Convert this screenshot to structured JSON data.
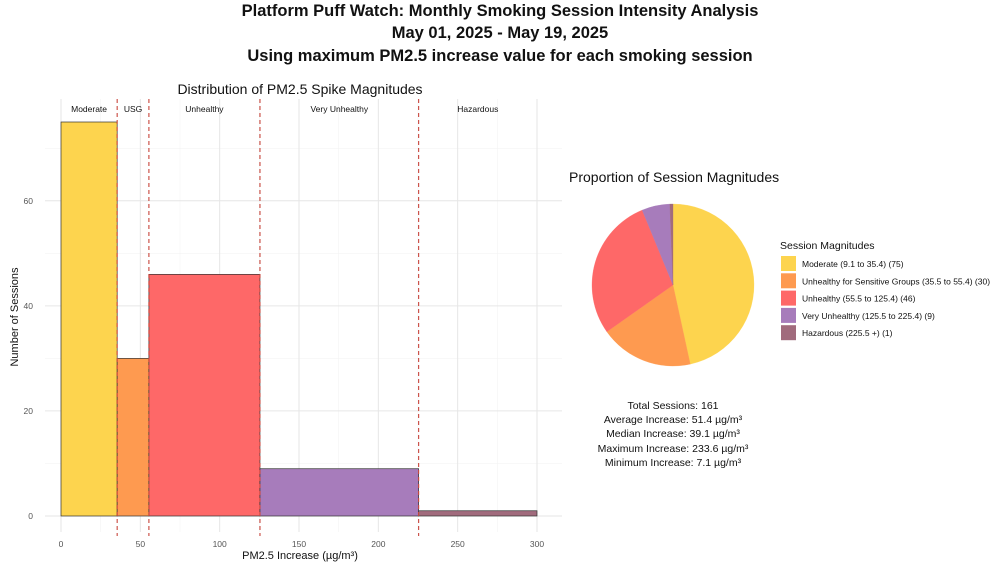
{
  "header": {
    "title": "Platform Puff Watch: Monthly Smoking Session Intensity Analysis",
    "subtitle": "May 01, 2025 - May 19, 2025",
    "subtitle2": "Using maximum PM2.5 increase value for each smoking session"
  },
  "chart_data": [
    {
      "type": "bar",
      "title": "Distribution of PM2.5 Spike Magnitudes",
      "xlabel": "PM2.5 Increase (µg/m³)",
      "ylabel": "Number of Sessions",
      "xlim": [
        0,
        300
      ],
      "ylim": [
        0,
        75
      ],
      "xticks": [
        0,
        50,
        100,
        150,
        200,
        250,
        300
      ],
      "yticks": [
        0,
        20,
        40,
        60
      ],
      "grid": true,
      "bins": [
        {
          "x0": 0,
          "x1": 35.4,
          "value": 75,
          "color": "#FDD44E"
        },
        {
          "x0": 35.4,
          "x1": 55.4,
          "value": 30,
          "color": "#FE9A50"
        },
        {
          "x0": 55.4,
          "x1": 125.4,
          "value": 46,
          "color": "#FE6868"
        },
        {
          "x0": 125.4,
          "x1": 225.4,
          "value": 9,
          "color": "#A77CBB"
        },
        {
          "x0": 225.4,
          "x1": 300,
          "value": 1,
          "color": "#A16B7D"
        }
      ],
      "thresholds": [
        35.4,
        55.4,
        125.4,
        225.4
      ],
      "threshold_color": "#C8463C",
      "category_labels": [
        {
          "label": "Moderate",
          "x": 17.7
        },
        {
          "label": "USG",
          "x": 45.4
        },
        {
          "label": "Unhealthy",
          "x": 90.4
        },
        {
          "label": "Very Unhealthy",
          "x": 175.4
        },
        {
          "label": "Hazardous",
          "x": 262.7
        }
      ]
    },
    {
      "type": "pie",
      "title": "Proportion of Session Magnitudes",
      "legend_title": "Session Magnitudes",
      "legend_position": "right",
      "slices": [
        {
          "label": "Moderate (9.1 to 35.4) (75)",
          "value": 75,
          "color": "#FDD44E"
        },
        {
          "label": "Unhealthy for Sensitive Groups (35.5 to 55.4) (30)",
          "value": 30,
          "color": "#FE9A50"
        },
        {
          "label": "Unhealthy (55.5 to 125.4) (46)",
          "value": 46,
          "color": "#FE6868"
        },
        {
          "label": "Very Unhealthy (125.5 to 225.4) (9)",
          "value": 9,
          "color": "#A77CBB"
        },
        {
          "label": "Hazardous (225.5 +) (1)",
          "value": 1,
          "color": "#A16B7D"
        }
      ]
    }
  ],
  "stats": {
    "total": "Total Sessions: 161",
    "average": "Average Increase: 51.4 µg/m³",
    "median": "Median Increase: 39.1 µg/m³",
    "maximum": "Maximum Increase: 233.6 µg/m³",
    "minimum": "Minimum Increase: 7.1 µg/m³"
  }
}
